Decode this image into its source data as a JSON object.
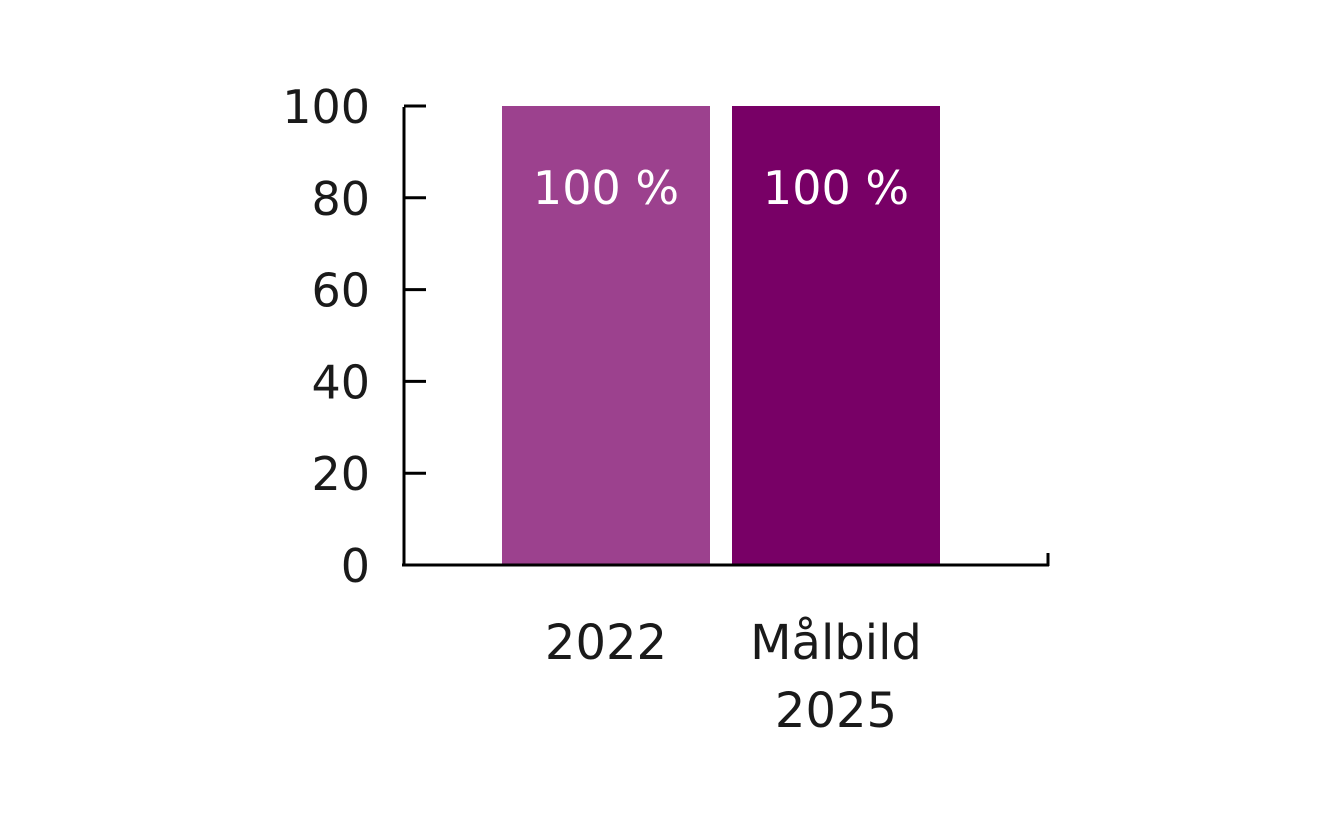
{
  "chart_data": {
    "type": "bar",
    "categories": [
      [
        "2022"
      ],
      [
        "Målbild",
        "2025"
      ]
    ],
    "values": [
      100,
      100
    ],
    "data_labels": [
      "100 %",
      "100 %"
    ],
    "colors": [
      "#9c418e",
      "#780066"
    ],
    "ylim": [
      0,
      100
    ],
    "yticks": [
      0,
      20,
      40,
      60,
      80,
      100
    ],
    "ytick_labels": [
      "0",
      "20",
      "40",
      "60",
      "80",
      "100"
    ],
    "title": "",
    "xlabel": "",
    "ylabel": "",
    "grid": false,
    "axis_color": "#000000"
  }
}
